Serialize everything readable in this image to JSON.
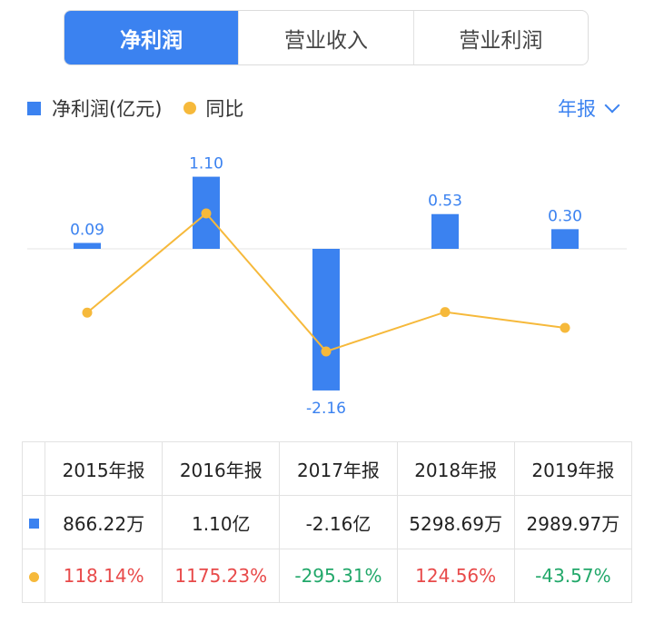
{
  "tabs": [
    {
      "label": "净利润",
      "active": true
    },
    {
      "label": "营业收入",
      "active": false
    },
    {
      "label": "营业利润",
      "active": false
    }
  ],
  "legend": {
    "bar_label": "净利润(亿元)",
    "line_label": "同比"
  },
  "period_selector": {
    "label": "年报"
  },
  "colors": {
    "bar": "#3b82f0",
    "line": "#f6b93b",
    "positive": "#e84a4a",
    "negative": "#22a86a"
  },
  "chart_data": {
    "type": "bar",
    "categories": [
      "2015年报",
      "2016年报",
      "2017年报",
      "2018年报",
      "2019年报"
    ],
    "series": [
      {
        "name": "净利润(亿元)",
        "type": "bar",
        "values": [
          0.09,
          1.1,
          -2.16,
          0.53,
          0.3
        ],
        "labels": [
          "0.09",
          "1.10",
          "-2.16",
          "0.53",
          "0.30"
        ]
      },
      {
        "name": "同比",
        "type": "line",
        "values": [
          118.14,
          1175.23,
          -295.31,
          124.56,
          -43.57
        ]
      }
    ]
  },
  "table": {
    "headers": [
      "2015年报",
      "2016年报",
      "2017年报",
      "2018年报",
      "2019年报"
    ],
    "rows": [
      {
        "marker": "bar",
        "cells": [
          {
            "text": "866.22万",
            "tone": "plain"
          },
          {
            "text": "1.10亿",
            "tone": "plain"
          },
          {
            "text": "-2.16亿",
            "tone": "plain"
          },
          {
            "text": "5298.69万",
            "tone": "plain"
          },
          {
            "text": "2989.97万",
            "tone": "plain"
          }
        ]
      },
      {
        "marker": "line",
        "cells": [
          {
            "text": "118.14%",
            "tone": "positive"
          },
          {
            "text": "1175.23%",
            "tone": "positive"
          },
          {
            "text": "-295.31%",
            "tone": "negative"
          },
          {
            "text": "124.56%",
            "tone": "positive"
          },
          {
            "text": "-43.57%",
            "tone": "negative"
          }
        ]
      }
    ]
  }
}
